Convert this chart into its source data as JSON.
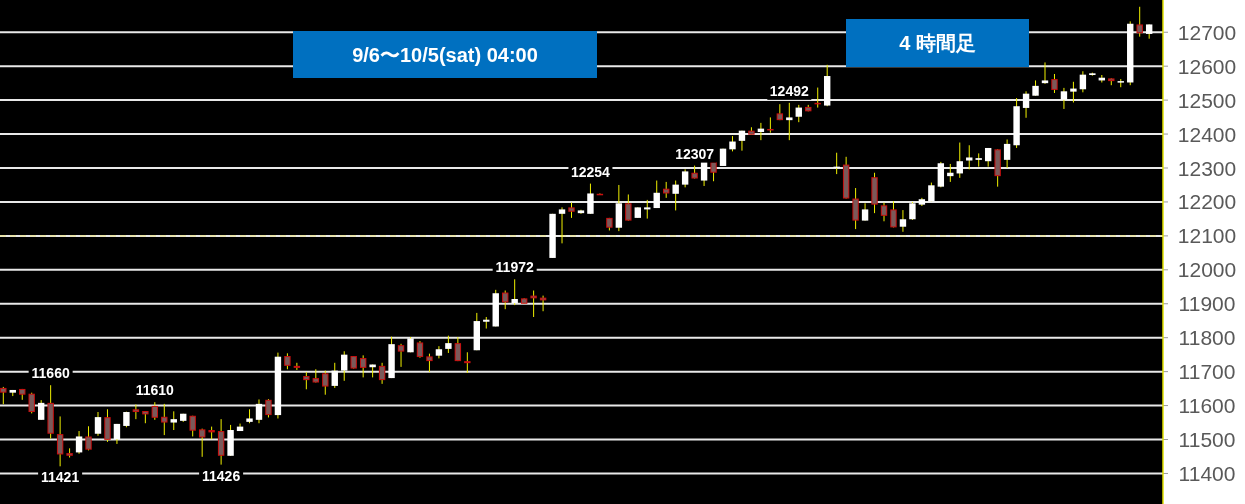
{
  "chart_data": {
    "type": "candlestick",
    "title": "4 時間足",
    "subtitle": "9/6〜10/5(sat)  04:00",
    "categories": [
      null,
      null,
      null,
      null,
      null,
      null,
      null,
      null,
      null,
      null,
      null,
      null,
      null,
      null,
      null,
      null,
      null,
      null,
      null,
      null,
      null,
      null,
      null,
      null,
      null,
      null,
      null,
      null,
      null,
      null,
      null,
      null,
      null,
      null,
      null,
      null,
      null,
      null,
      null,
      null,
      null,
      null,
      null,
      null,
      null,
      null,
      null,
      null,
      null,
      null,
      null,
      null,
      null,
      null,
      null,
      null,
      null,
      null,
      null,
      null,
      null,
      null,
      null,
      null,
      null,
      null,
      null,
      null,
      null,
      null,
      null,
      null,
      null,
      null,
      null,
      null,
      null,
      null,
      null,
      null,
      null,
      null,
      null,
      null,
      null,
      null,
      null,
      null,
      null,
      null,
      null,
      null,
      null,
      null,
      null,
      null,
      null,
      null,
      null,
      null,
      null,
      null,
      null,
      null,
      null,
      null,
      null,
      null,
      null,
      null,
      null,
      null,
      null,
      null,
      null,
      null,
      null,
      null,
      null,
      null,
      null,
      null
    ],
    "ohlc": [
      [
        11652,
        11655,
        11604,
        11638
      ],
      [
        11638,
        11646,
        11628,
        11646
      ],
      [
        11649,
        11649,
        11617,
        11632
      ],
      [
        11635,
        11638,
        11577,
        11581
      ],
      [
        11558,
        11616,
        11558,
        11608
      ],
      [
        11608,
        11660,
        11503,
        11517
      ],
      [
        11516,
        11568,
        11421,
        11456
      ],
      [
        11460,
        11474,
        11447,
        11452
      ],
      [
        11462,
        11525,
        11458,
        11509
      ],
      [
        11509,
        11539,
        11468,
        11470
      ],
      [
        11517,
        11581,
        11511,
        11566
      ],
      [
        11566,
        11589,
        11493,
        11499
      ],
      [
        11501,
        11546,
        11487,
        11546
      ],
      [
        11540,
        11582,
        11536,
        11581
      ],
      [
        11589,
        11603,
        11560,
        11581
      ],
      [
        11584,
        11584,
        11548,
        11574
      ],
      [
        11599,
        11610,
        11558,
        11564
      ],
      [
        11567,
        11605,
        11513,
        11550
      ],
      [
        11550,
        11583,
        11528,
        11560
      ],
      [
        11555,
        11576,
        11552,
        11576
      ],
      [
        11570,
        11570,
        11509,
        11526
      ],
      [
        11530,
        11532,
        11449,
        11506
      ],
      [
        11528,
        11538,
        11501,
        11521
      ],
      [
        11525,
        11560,
        11426,
        11452
      ],
      [
        11452,
        11543,
        11452,
        11528
      ],
      [
        11525,
        11547,
        11525,
        11538
      ],
      [
        11552,
        11589,
        11548,
        11562
      ],
      [
        11558,
        11618,
        11548,
        11605
      ],
      [
        11617,
        11619,
        11565,
        11572
      ],
      [
        11572,
        11756,
        11562,
        11744
      ],
      [
        11746,
        11754,
        11707,
        11717
      ],
      [
        11717,
        11726,
        11705,
        11711
      ],
      [
        11687,
        11699,
        11648,
        11675
      ],
      [
        11681,
        11707,
        11668,
        11668
      ],
      [
        11695,
        11703,
        11632,
        11656
      ],
      [
        11658,
        11726,
        11652,
        11703
      ],
      [
        11703,
        11760,
        11673,
        11750
      ],
      [
        11746,
        11746,
        11709,
        11709
      ],
      [
        11740,
        11748,
        11683,
        11711
      ],
      [
        11713,
        11721,
        11683,
        11721
      ],
      [
        11717,
        11726,
        11664,
        11675
      ],
      [
        11681,
        11803,
        11681,
        11781
      ],
      [
        11778,
        11782,
        11714,
        11759
      ],
      [
        11757,
        11802,
        11757,
        11798
      ],
      [
        11786,
        11790,
        11741,
        11743
      ],
      [
        11745,
        11753,
        11699,
        11731
      ],
      [
        11747,
        11775,
        11739,
        11766
      ],
      [
        11767,
        11806,
        11755,
        11784
      ],
      [
        11784,
        11802,
        11731,
        11731
      ],
      [
        11731,
        11757,
        11696,
        11725
      ],
      [
        11763,
        11873,
        11763,
        11849
      ],
      [
        11847,
        11861,
        11827,
        11853
      ],
      [
        11833,
        11941,
        11833,
        11931
      ],
      [
        11933,
        11939,
        11884,
        11904
      ],
      [
        11902,
        11972,
        11896,
        11914
      ],
      [
        11916,
        11916,
        11900,
        11900
      ],
      [
        11924,
        11939,
        11861,
        11916
      ],
      [
        11918,
        11924,
        11878,
        11910
      ],
      [
        12035,
        12165,
        12035,
        12165
      ],
      [
        12165,
        12184,
        12078,
        12178
      ],
      [
        12184,
        12198,
        12153,
        12171
      ],
      [
        12167,
        12177,
        12165,
        12175
      ],
      [
        12165,
        12254,
        12165,
        12225
      ],
      [
        12224,
        12225,
        12221,
        12222
      ],
      [
        12153,
        12153,
        12116,
        12124
      ],
      [
        12124,
        12250,
        12114,
        12196
      ],
      [
        12196,
        12222,
        12145,
        12145
      ],
      [
        12153,
        12184,
        12153,
        12184
      ],
      [
        12178,
        12206,
        12151,
        12184
      ],
      [
        12182,
        12263,
        12182,
        12227
      ],
      [
        12239,
        12259,
        12212,
        12225
      ],
      [
        12224,
        12263,
        12175,
        12251
      ],
      [
        12251,
        12296,
        12243,
        12290
      ],
      [
        12286,
        12307,
        12269,
        12269
      ],
      [
        12263,
        12320,
        12247,
        12320
      ],
      [
        12318,
        12318,
        12261,
        12286
      ],
      [
        12306,
        12357,
        12306,
        12357
      ],
      [
        12355,
        12394,
        12349,
        12378
      ],
      [
        12380,
        12410,
        12351,
        12410
      ],
      [
        12410,
        12420,
        12398,
        12398
      ],
      [
        12406,
        12433,
        12382,
        12416
      ],
      [
        12415,
        12449,
        12404,
        12413
      ],
      [
        12461,
        12488,
        12441,
        12441
      ],
      [
        12441,
        12492,
        12382,
        12449
      ],
      [
        12451,
        12486,
        12435,
        12478
      ],
      [
        12480,
        12486,
        12467,
        12467
      ],
      [
        12492,
        12537,
        12478,
        12488
      ],
      [
        12484,
        12604,
        12482,
        12571
      ],
      [
        12302,
        12345,
        12282,
        12304
      ],
      [
        12310,
        12333,
        12210,
        12210
      ],
      [
        12210,
        12241,
        12120,
        12145
      ],
      [
        12145,
        12196,
        12145,
        12178
      ],
      [
        12273,
        12286,
        12167,
        12192
      ],
      [
        12190,
        12198,
        12143,
        12159
      ],
      [
        12178,
        12202,
        12125,
        12125
      ],
      [
        12127,
        12176,
        12112,
        12149
      ],
      [
        12149,
        12200,
        12147,
        12196
      ],
      [
        12192,
        12212,
        12188,
        12208
      ],
      [
        12202,
        12257,
        12202,
        12249
      ],
      [
        12245,
        12318,
        12243,
        12314
      ],
      [
        12276,
        12312,
        12259,
        12286
      ],
      [
        12284,
        12375,
        12271,
        12320
      ],
      [
        12322,
        12367,
        12296,
        12331
      ],
      [
        12324,
        12343,
        12304,
        12329
      ],
      [
        12320,
        12359,
        12304,
        12359
      ],
      [
        12355,
        12355,
        12245,
        12276
      ],
      [
        12324,
        12384,
        12300,
        12371
      ],
      [
        12367,
        12506,
        12359,
        12482
      ],
      [
        12477,
        12526,
        12448,
        12519
      ],
      [
        12513,
        12558,
        12513,
        12542
      ],
      [
        12550,
        12611,
        12548,
        12558
      ],
      [
        12562,
        12577,
        12521,
        12530
      ],
      [
        12501,
        12536,
        12474,
        12526
      ],
      [
        12525,
        12554,
        12493,
        12534
      ],
      [
        12532,
        12585,
        12523,
        12575
      ],
      [
        12574,
        12581,
        12572,
        12579
      ],
      [
        12558,
        12574,
        12552,
        12566
      ],
      [
        12564,
        12564,
        12544,
        12556
      ],
      [
        12552,
        12562,
        12538,
        12556
      ],
      [
        12552,
        12732,
        12544,
        12725
      ],
      [
        12723,
        12775,
        12687,
        12697
      ],
      [
        12695,
        12723,
        12681,
        12723
      ]
    ],
    "ylim": [
      11310,
      12795
    ],
    "yticks": [
      11400,
      11500,
      11600,
      11700,
      11800,
      11900,
      12000,
      12100,
      12200,
      12300,
      12400,
      12500,
      12600,
      12700
    ],
    "grid": "y",
    "ref_lines": [
      {
        "axis": "y",
        "value": 12100,
        "color": "#e6e08a",
        "line_style": "dashed"
      }
    ],
    "annotations": [
      {
        "text": "11660",
        "y": 11660
      },
      {
        "text": "11421",
        "y": 11421
      },
      {
        "text": "11610",
        "y": 11610
      },
      {
        "text": "11426",
        "y": 11426
      },
      {
        "text": "11972",
        "y": 11972
      },
      {
        "text": "12254",
        "y": 12254
      },
      {
        "text": "12307",
        "y": 12307
      },
      {
        "text": "12492",
        "y": 12492
      }
    ]
  }
}
